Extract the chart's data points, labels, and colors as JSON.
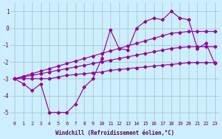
{
  "xlabel": "Windchill (Refroidissement éolien,°C)",
  "bg_color": "#cceeff",
  "grid_color": "#aacccc",
  "line_color": "#990099",
  "x": [
    0,
    1,
    2,
    3,
    4,
    5,
    6,
    7,
    8,
    9,
    10,
    11,
    12,
    13,
    14,
    15,
    16,
    17,
    18,
    19,
    20,
    21,
    22,
    23
  ],
  "series_straight1": [
    -3.0,
    -2.85,
    -2.7,
    -2.55,
    -2.4,
    -2.25,
    -2.1,
    -1.95,
    -1.8,
    -1.65,
    -1.5,
    -1.35,
    -1.2,
    -1.05,
    -0.9,
    -0.75,
    -0.6,
    -0.45,
    -0.3,
    -0.25,
    -0.2,
    -0.2,
    -0.2,
    -0.2
  ],
  "series_straight2": [
    -3.0,
    -2.9,
    -2.8,
    -2.7,
    -2.6,
    -2.5,
    -2.4,
    -2.3,
    -2.2,
    -2.1,
    -2.0,
    -1.9,
    -1.8,
    -1.7,
    -1.6,
    -1.5,
    -1.4,
    -1.3,
    -1.2,
    -1.15,
    -1.1,
    -1.1,
    -1.1,
    -1.1
  ],
  "series_straight3": [
    -3.0,
    -3.0,
    -3.0,
    -3.0,
    -3.0,
    -2.9,
    -2.8,
    -2.75,
    -2.7,
    -2.65,
    -2.6,
    -2.5,
    -2.45,
    -2.4,
    -2.35,
    -2.3,
    -2.25,
    -2.2,
    -2.15,
    -2.1,
    -2.05,
    -2.05,
    -2.05,
    -2.05
  ],
  "series_main": [
    -3.0,
    -3.3,
    -3.7,
    -3.3,
    -5.0,
    -5.0,
    -5.0,
    -4.5,
    -3.5,
    -3.0,
    -1.8,
    -0.1,
    -1.2,
    -1.3,
    0.0,
    0.4,
    0.6,
    0.5,
    1.0,
    0.6,
    0.5,
    -1.2,
    -0.9,
    -2.1
  ],
  "ylim": [
    -5.5,
    1.5
  ],
  "yticks": [
    1,
    0,
    -1,
    -2,
    -3,
    -4,
    -5
  ],
  "xticks": [
    0,
    1,
    2,
    3,
    4,
    5,
    6,
    7,
    8,
    9,
    10,
    11,
    12,
    13,
    14,
    15,
    16,
    17,
    18,
    19,
    20,
    21,
    22,
    23
  ],
  "xlim": [
    -0.5,
    23.5
  ]
}
